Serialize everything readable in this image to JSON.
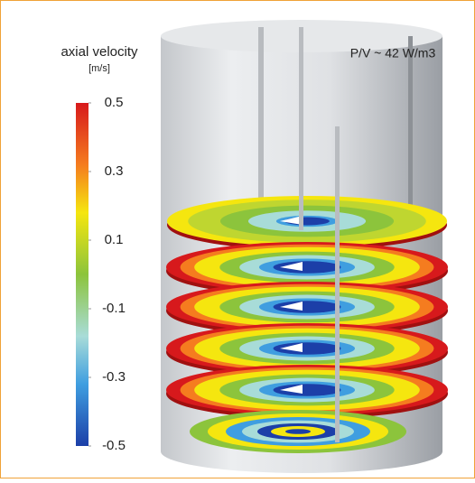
{
  "colorbar": {
    "title": "axial velocity",
    "unit": "[m/s]",
    "lim": [
      -0.5,
      0.5
    ],
    "ticks": [
      0.5,
      0.3,
      0.1,
      -0.1,
      -0.3,
      -0.5
    ]
  },
  "annotation": "P/V ~ 42 W/m3"
}
